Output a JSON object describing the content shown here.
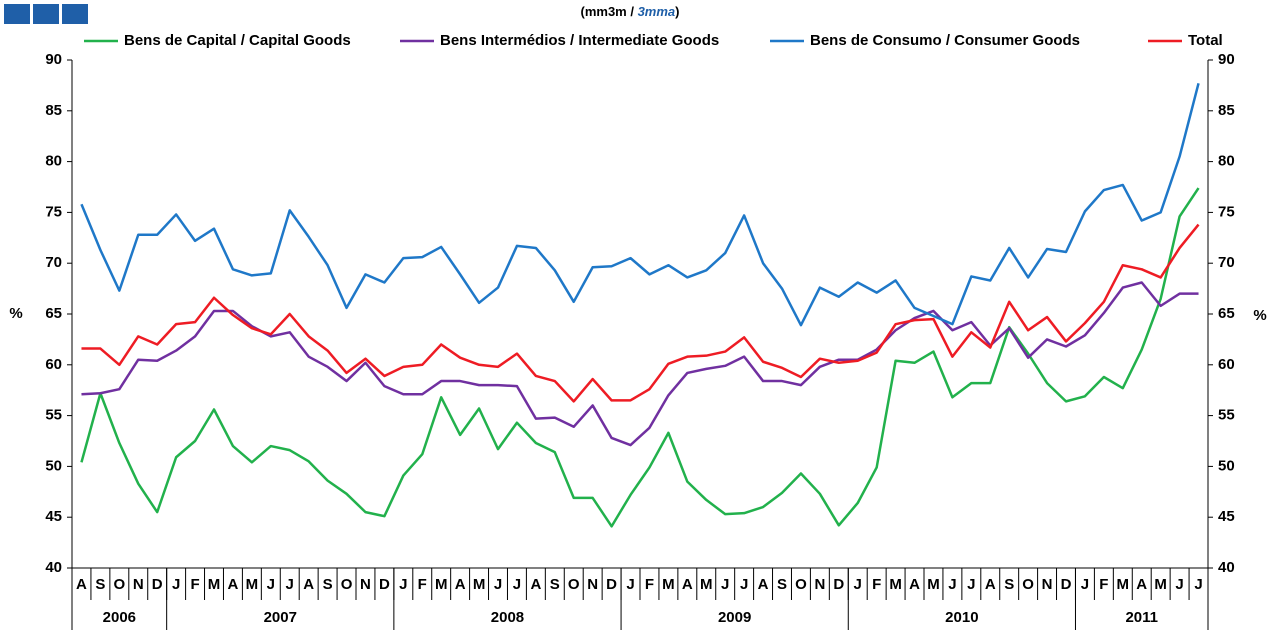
{
  "chart_data": {
    "type": "line",
    "subtitle_parts": [
      "(mm3m / ",
      "3mma",
      ")"
    ],
    "ylabel": "%",
    "y2label": "%",
    "categories": [
      "A",
      "S",
      "O",
      "N",
      "D",
      "J",
      "F",
      "M",
      "A",
      "M",
      "J",
      "J",
      "A",
      "S",
      "O",
      "N",
      "D",
      "J",
      "F",
      "M",
      "A",
      "M",
      "J",
      "J",
      "A",
      "S",
      "O",
      "N",
      "D",
      "J",
      "F",
      "M",
      "A",
      "M",
      "J",
      "J",
      "A",
      "S",
      "O",
      "N",
      "D",
      "J",
      "F",
      "M",
      "A",
      "M",
      "J",
      "J",
      "A",
      "S",
      "O",
      "N",
      "D",
      "J",
      "F",
      "M",
      "A",
      "M",
      "J",
      "J"
    ],
    "category_groups": [
      {
        "label": "2006",
        "size": 5
      },
      {
        "label": "2007",
        "size": 12
      },
      {
        "label": "2008",
        "size": 12
      },
      {
        "label": "2009",
        "size": 12
      },
      {
        "label": "2010",
        "size": 12
      },
      {
        "label": "2011",
        "size": 7
      }
    ],
    "ylim": [
      40,
      90
    ],
    "yticks": [
      40,
      45,
      50,
      55,
      60,
      65,
      70,
      75,
      80,
      85,
      90
    ],
    "y2lim": [
      40,
      90
    ],
    "y2ticks": [
      40,
      45,
      50,
      55,
      60,
      65,
      70,
      75,
      80,
      85,
      90
    ],
    "grid": false,
    "series": [
      {
        "name": "Bens de Capital / Capital Goods",
        "color": "#22b14c",
        "values": [
          50.4,
          57.2,
          52.3,
          48.3,
          45.5,
          50.9,
          52.5,
          55.6,
          52.0,
          50.4,
          52.0,
          51.6,
          50.5,
          48.6,
          47.3,
          45.5,
          45.1,
          49.1,
          51.2,
          56.8,
          53.1,
          55.7,
          51.7,
          54.3,
          52.3,
          51.4,
          46.9,
          46.9,
          44.1,
          47.2,
          49.9,
          53.3,
          48.5,
          46.7,
          45.3,
          45.4,
          46.0,
          47.4,
          49.3,
          47.3,
          44.2,
          46.4,
          49.9,
          60.4,
          60.2,
          61.3,
          56.8,
          58.2,
          58.2,
          63.7,
          61.1,
          58.2,
          56.4,
          56.9,
          58.8,
          57.7,
          61.5,
          66.5,
          74.6,
          77.4
        ]
      },
      {
        "name": "Bens Intermédios / Intermediate Goods",
        "color": "#7030a0",
        "values": [
          57.1,
          57.2,
          57.6,
          60.5,
          60.4,
          61.4,
          62.8,
          65.3,
          65.3,
          63.8,
          62.8,
          63.2,
          60.8,
          59.8,
          58.4,
          60.2,
          57.9,
          57.1,
          57.1,
          58.4,
          58.4,
          58.0,
          58.0,
          57.9,
          54.7,
          54.8,
          53.9,
          56.0,
          52.8,
          52.1,
          53.8,
          57.0,
          59.2,
          59.6,
          59.9,
          60.8,
          58.4,
          58.4,
          58.0,
          59.8,
          60.5,
          60.5,
          61.5,
          63.4,
          64.6,
          65.3,
          63.4,
          64.2,
          61.9,
          63.6,
          60.7,
          62.5,
          61.8,
          62.9,
          65.1,
          67.6,
          68.1,
          65.8,
          67.0,
          67.0
        ]
      },
      {
        "name": "Bens de Consumo / Consumer Goods",
        "color": "#1f78c8",
        "values": [
          75.8,
          71.3,
          67.3,
          72.8,
          72.8,
          74.8,
          72.2,
          73.4,
          69.4,
          68.8,
          69.0,
          75.2,
          72.6,
          69.8,
          65.6,
          68.9,
          68.1,
          70.5,
          70.6,
          71.6,
          68.9,
          66.1,
          67.6,
          71.7,
          71.5,
          69.3,
          66.2,
          69.6,
          69.7,
          70.5,
          68.9,
          69.8,
          68.6,
          69.3,
          71.0,
          74.7,
          70.0,
          67.5,
          63.9,
          67.6,
          66.7,
          68.1,
          67.1,
          68.3,
          65.6,
          64.8,
          64.0,
          68.7,
          68.3,
          71.5,
          68.6,
          71.4,
          71.1,
          75.1,
          77.2,
          77.7,
          74.2,
          75.0,
          80.5,
          87.7
        ]
      },
      {
        "name": "Total",
        "color": "#ee1c24",
        "values": [
          61.6,
          61.6,
          60.0,
          62.8,
          62.0,
          64.0,
          64.2,
          66.6,
          64.9,
          63.6,
          63.0,
          65.0,
          62.8,
          61.4,
          59.2,
          60.6,
          58.9,
          59.8,
          60.0,
          62.0,
          60.7,
          60.0,
          59.8,
          61.1,
          58.9,
          58.4,
          56.4,
          58.6,
          56.5,
          56.5,
          57.6,
          60.1,
          60.8,
          60.9,
          61.3,
          62.7,
          60.3,
          59.7,
          58.8,
          60.6,
          60.2,
          60.4,
          61.2,
          64.0,
          64.4,
          64.5,
          60.8,
          63.2,
          61.7,
          66.2,
          63.4,
          64.7,
          62.3,
          64.1,
          66.2,
          69.8,
          69.4,
          68.6,
          71.5,
          73.8
        ]
      }
    ]
  }
}
